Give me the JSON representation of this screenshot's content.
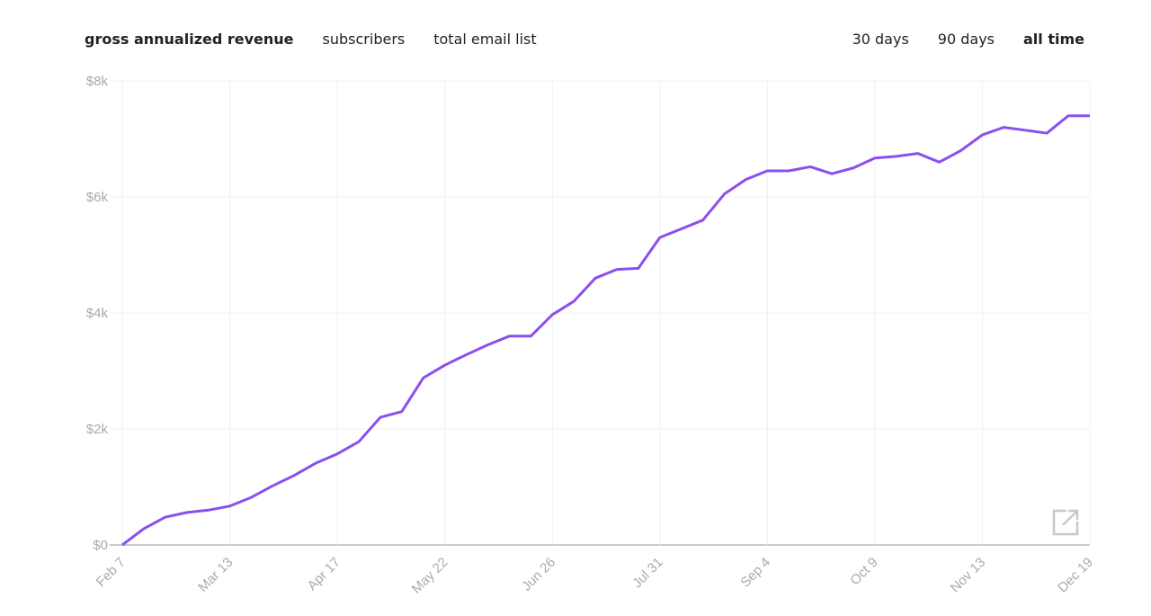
{
  "metric_tabs": {
    "items": [
      "gross annualized revenue",
      "subscribers",
      "total email list"
    ],
    "active": 0
  },
  "range_tabs": {
    "items": [
      "30 days",
      "90 days",
      "all time"
    ],
    "active": 2
  },
  "chart_data": {
    "type": "line",
    "categories": [
      "Feb 7",
      null,
      null,
      null,
      null,
      "Mar 13",
      null,
      null,
      null,
      null,
      "Apr 17",
      null,
      null,
      null,
      null,
      "May 22",
      null,
      null,
      null,
      null,
      "Jun 26",
      null,
      null,
      null,
      null,
      "Jul 31",
      null,
      null,
      null,
      null,
      "Sep 4",
      null,
      null,
      null,
      null,
      "Oct 9",
      null,
      null,
      null,
      null,
      "Nov 13",
      null,
      null,
      null,
      null,
      "Dec 19"
    ],
    "series": [
      {
        "name": "gross annualized revenue",
        "color": "#8b4ff0",
        "values": [
          0,
          280,
          480,
          560,
          600,
          670,
          820,
          1020,
          1200,
          1410,
          1570,
          1780,
          2200,
          2300,
          2880,
          3100,
          3280,
          3450,
          3600,
          3600,
          3970,
          4200,
          4600,
          4750,
          4770,
          5300,
          5450,
          5600,
          6050,
          6300,
          6450,
          6450,
          6520,
          6400,
          6500,
          6670,
          6700,
          6750,
          6600,
          6800,
          7070,
          7200,
          7150,
          7100,
          7400,
          7400
        ]
      }
    ],
    "ylim": [
      0,
      8000
    ],
    "yticks": [
      {
        "value": 0,
        "label": "$0"
      },
      {
        "value": 2000,
        "label": "$2k"
      },
      {
        "value": 4000,
        "label": "$4k"
      },
      {
        "value": 6000,
        "label": "$6k"
      },
      {
        "value": 8000,
        "label": "$8k"
      }
    ],
    "grid": true
  }
}
